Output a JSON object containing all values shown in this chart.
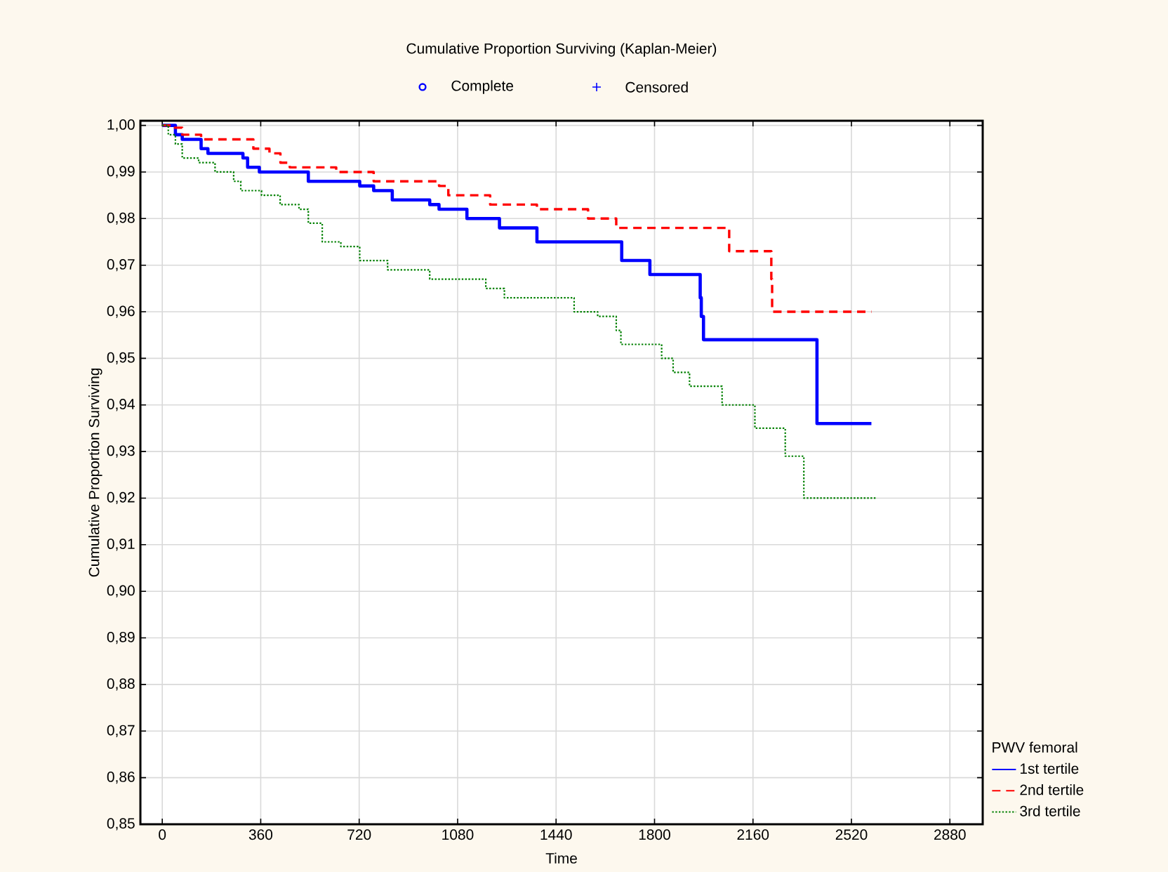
{
  "chart_data": {
    "type": "step",
    "title": "Cumulative Proportion Surviving (Kaplan-Meier)",
    "xlabel": "Time",
    "ylabel": "Cumulative Proportion Surviving",
    "legend_title": "PWV femoral",
    "legend": "bottom right",
    "grid": true,
    "marker": "none",
    "annotations": [
      "Complete",
      "Censored"
    ],
    "xlim": [
      -80,
      3000
    ],
    "ylim": [
      0.85,
      1.001
    ],
    "xticks": [
      0,
      360,
      720,
      1080,
      1440,
      1800,
      2160,
      2520,
      2880
    ],
    "yticks": [
      {
        "value": 0.85,
        "label": "0,85"
      },
      {
        "value": 0.86,
        "label": "0,86"
      },
      {
        "value": 0.87,
        "label": "0,87"
      },
      {
        "value": 0.88,
        "label": "0,88"
      },
      {
        "value": 0.89,
        "label": "0,89"
      },
      {
        "value": 0.9,
        "label": "0,90"
      },
      {
        "value": 0.91,
        "label": "0,91"
      },
      {
        "value": 0.92,
        "label": "0,92"
      },
      {
        "value": 0.93,
        "label": "0,93"
      },
      {
        "value": 0.94,
        "label": "0,94"
      },
      {
        "value": 0.95,
        "label": "0,95"
      },
      {
        "value": 0.96,
        "label": "0,96"
      },
      {
        "value": 0.97,
        "label": "0,97"
      },
      {
        "value": 0.98,
        "label": "0,98"
      },
      {
        "value": 0.99,
        "label": "0,99"
      },
      {
        "value": 1.0,
        "label": "1,00"
      }
    ],
    "series": [
      {
        "name": "1st tertile",
        "color": "#0000ff",
        "line_style": "solid",
        "x": [
          0,
          48,
          73,
          142,
          167,
          235,
          295,
          312,
          355,
          534,
          722,
          773,
          841,
          978,
          1012,
          1114,
          1233,
          1370,
          1680,
          1783,
          1967,
          1971,
          1979,
          2394,
          2593
        ],
        "values": [
          1.0,
          0.998,
          0.997,
          0.995,
          0.994,
          0.994,
          0.993,
          0.991,
          0.99,
          0.988,
          0.987,
          0.986,
          0.984,
          0.983,
          0.982,
          0.98,
          0.978,
          0.975,
          0.971,
          0.968,
          0.963,
          0.959,
          0.954,
          0.936,
          0.936
        ]
      },
      {
        "name": "2nd tertile",
        "color": "#ff0000",
        "line_style": "dashed",
        "x": [
          0,
          39,
          73,
          142,
          333,
          392,
          432,
          466,
          636,
          773,
          1012,
          1046,
          1199,
          1370,
          1557,
          1660,
          2073,
          2227,
          2230,
          2593
        ],
        "values": [
          1.0,
          0.9995,
          0.998,
          0.997,
          0.995,
          0.994,
          0.992,
          0.991,
          0.99,
          0.988,
          0.987,
          0.985,
          0.983,
          0.982,
          0.98,
          0.978,
          0.973,
          0.967,
          0.96,
          0.96
        ]
      },
      {
        "name": "3rd tertile",
        "color": "#008000",
        "line_style": "dotted",
        "x": [
          0,
          22,
          48,
          73,
          133,
          193,
          261,
          287,
          363,
          431,
          500,
          534,
          585,
          653,
          722,
          824,
          978,
          1183,
          1251,
          1506,
          1592,
          1660,
          1677,
          1826,
          1868,
          1928,
          2047,
          2167,
          2278,
          2346,
          2610
        ],
        "values": [
          1.0,
          0.998,
          0.996,
          0.993,
          0.992,
          0.99,
          0.988,
          0.986,
          0.985,
          0.983,
          0.982,
          0.979,
          0.975,
          0.974,
          0.971,
          0.969,
          0.967,
          0.965,
          0.963,
          0.96,
          0.959,
          0.956,
          0.953,
          0.95,
          0.947,
          0.944,
          0.94,
          0.935,
          0.929,
          0.92,
          0.92
        ]
      }
    ]
  }
}
